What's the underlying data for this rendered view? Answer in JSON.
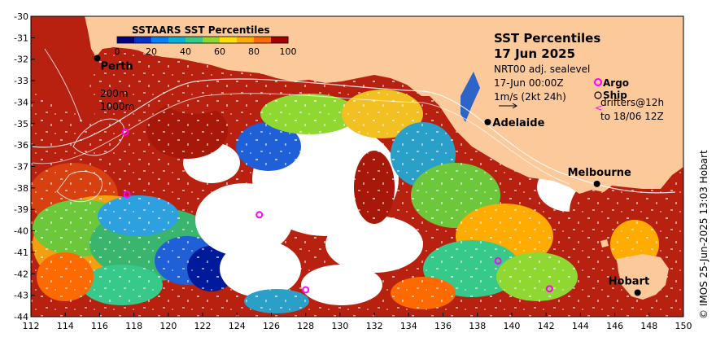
{
  "map": {
    "title_line1": "SST Percentiles",
    "title_line2": "17 Jun 2025",
    "info_product": "NRT00 adj. sealevel",
    "info_time": "17-Jun 00:00Z",
    "info_scale": "1m/s (2kt 24h)",
    "legend_argo": "Argo",
    "legend_ship": "Ship",
    "legend_drifters": "drifters@12h",
    "legend_drifters_to": "to 18/06 12Z",
    "contour_200": "200m",
    "contour_1000": "1000m",
    "copyright": "© IMOS 25-Jun-2025 13:03 Hobart",
    "colors": {
      "land": "#fcc99a",
      "argo": "#ff00ff",
      "city_dot": "#000000"
    }
  },
  "colorbar": {
    "title": "SSTAARS SST Percentiles",
    "ticks": [
      "0",
      "20",
      "40",
      "60",
      "80",
      "100"
    ],
    "colors": [
      "#00007f",
      "#0033cc",
      "#0080ff",
      "#00b4d8",
      "#36c98a",
      "#8fd832",
      "#ffe000",
      "#ffab00",
      "#ff6a00",
      "#a50000"
    ]
  },
  "axes": {
    "x_ticks": [
      "112",
      "114",
      "116",
      "118",
      "120",
      "122",
      "124",
      "126",
      "128",
      "130",
      "132",
      "134",
      "136",
      "138",
      "140",
      "142",
      "144",
      "146",
      "148",
      "150"
    ],
    "y_ticks": [
      "-30",
      "-31",
      "-32",
      "-33",
      "-34",
      "-35",
      "-36",
      "-37",
      "-38",
      "-39",
      "-40",
      "-41",
      "-42",
      "-43",
      "-44"
    ],
    "x_range": [
      112,
      150
    ],
    "y_range": [
      -44,
      -30
    ]
  },
  "cities": [
    {
      "name": "Perth",
      "lon": 115.86,
      "lat": -31.95
    },
    {
      "name": "Adelaide",
      "lon": 138.6,
      "lat": -34.93
    },
    {
      "name": "Melbourne",
      "lon": 144.96,
      "lat": -37.81
    },
    {
      "name": "Hobart",
      "lon": 147.33,
      "lat": -42.88
    }
  ],
  "argo_floats": [
    {
      "lon": 117.5,
      "lat": -35.4
    },
    {
      "lon": 117.6,
      "lat": -38.3
    },
    {
      "lon": 125.3,
      "lat": -39.25
    },
    {
      "lon": 128.0,
      "lat": -42.75
    },
    {
      "lon": 139.2,
      "lat": -41.4
    },
    {
      "lon": 142.2,
      "lat": -42.7
    }
  ]
}
